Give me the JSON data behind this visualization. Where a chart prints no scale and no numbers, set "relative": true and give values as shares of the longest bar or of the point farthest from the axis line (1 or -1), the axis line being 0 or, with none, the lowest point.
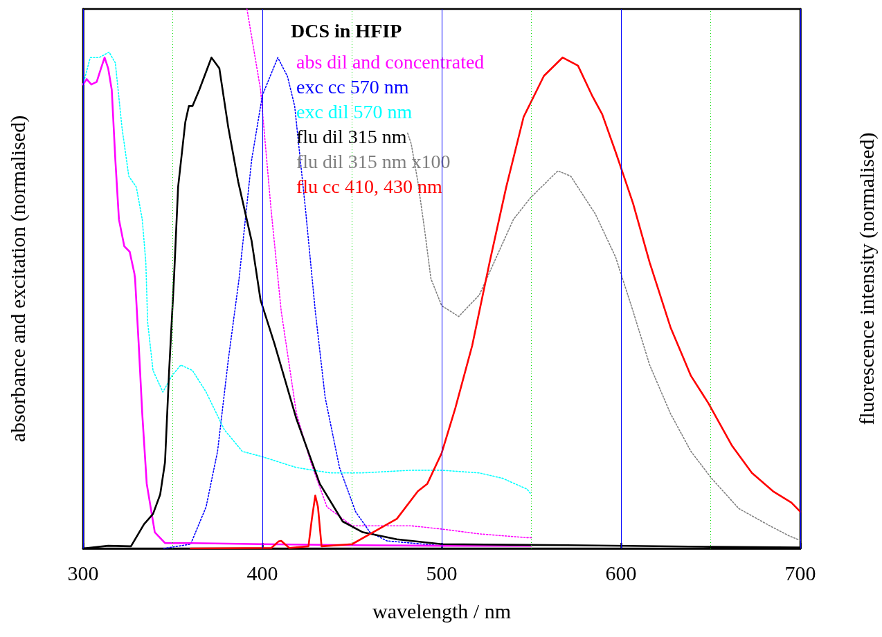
{
  "chart_data": {
    "type": "line",
    "relative": true,
    "xlabel": "wavelength / nm",
    "ylabel": "absorbance and excitation (normalised)",
    "y2label": "fluorescence intensity (normalised)",
    "legend_title": "DCS in HFIP",
    "legend": "top",
    "grid": "x",
    "marker": "none",
    "xlim": [
      300,
      700
    ],
    "xticks": [
      300,
      {
        "value": 350,
        "label": null
      },
      400,
      {
        "value": 450,
        "label": null
      },
      500,
      {
        "value": 550,
        "label": null
      },
      600,
      {
        "value": 650,
        "label": null
      },
      700
    ],
    "series": [
      {
        "name": "abs dil and concentrated",
        "color": "#ff00ff",
        "line_style": "solid",
        "x": [
          300,
          302,
          304.6,
          307.6,
          310,
          312,
          314,
          316,
          318,
          320,
          323,
          326,
          328.6,
          329,
          331,
          333,
          335.5,
          340,
          345.7,
          360,
          400,
          450,
          500,
          550
        ],
        "values": [
          0.86,
          0.87,
          0.86,
          0.865,
          0.89,
          0.91,
          0.89,
          0.85,
          0.72,
          0.61,
          0.56,
          0.55,
          0.51,
          0.5,
          0.38,
          0.25,
          0.12,
          0.03,
          0.01,
          0.01,
          0.008,
          0.006,
          0.005,
          0.005
        ]
      },
      {
        "color": "#ff00ff",
        "line_style": "dotted",
        "x": [
          391.4,
          399,
          404.8,
          410.5,
          419,
          427,
          436,
          450,
          483,
          500,
          521,
          547.6,
          550
        ],
        "values": [
          1.0,
          0.85,
          0.63,
          0.44,
          0.25,
          0.16,
          0.077,
          0.042,
          0.042,
          0.036,
          0.027,
          0.02,
          0.02
        ]
      },
      {
        "name": "exc cc 570 nm",
        "color": "#0000ff",
        "line_style": "dotted",
        "x": [
          345,
          360,
          368.6,
          375,
          381,
          387,
          394,
          400,
          408.6,
          414,
          418,
          424,
          429.5,
          435,
          443,
          452,
          460,
          469.5,
          500
        ],
        "values": [
          0,
          0.008,
          0.077,
          0.18,
          0.35,
          0.5,
          0.72,
          0.84,
          0.91,
          0.875,
          0.82,
          0.63,
          0.44,
          0.28,
          0.15,
          0.068,
          0.03,
          0.014,
          0.005
        ]
      },
      {
        "name": "exc dil 570 nm",
        "color": "#00ffff",
        "line_style": "dotted",
        "x": [
          300,
          304,
          309,
          314.5,
          318,
          321.7,
          325.5,
          329.7,
          333,
          335,
          336,
          339,
          344.5,
          349.5,
          354.5,
          361,
          368.6,
          378.8,
          388.8,
          400,
          419,
          438,
          455,
          483,
          500,
          521,
          534,
          547.6,
          550
        ],
        "values": [
          0.86,
          0.91,
          0.91,
          0.92,
          0.9,
          0.78,
          0.69,
          0.67,
          0.61,
          0.53,
          0.42,
          0.33,
          0.29,
          0.32,
          0.34,
          0.33,
          0.29,
          0.22,
          0.18,
          0.17,
          0.15,
          0.14,
          0.14,
          0.145,
          0.145,
          0.14,
          0.13,
          0.11,
          0.1
        ]
      },
      {
        "name": "flu dil 315 nm",
        "color": "#000000",
        "line_style": "solid",
        "x": [
          300,
          314,
          326.7,
          334,
          339,
          343,
          345.7,
          348,
          350.7,
          353,
          357,
          359,
          361,
          364.8,
          371.6,
          376,
          381,
          386.5,
          394,
          399,
          406.7,
          419,
          432,
          444.8,
          456,
          475,
          500,
          570,
          650,
          700
        ],
        "values": [
          0,
          0.005,
          0.004,
          0.045,
          0.064,
          0.1,
          0.16,
          0.33,
          0.5,
          0.67,
          0.79,
          0.82,
          0.82,
          0.85,
          0.91,
          0.89,
          0.78,
          0.68,
          0.57,
          0.46,
          0.38,
          0.24,
          0.12,
          0.05,
          0.03,
          0.017,
          0.008,
          0.006,
          0.003,
          0.002
        ]
      },
      {
        "name": "flu dil 315 nm x100",
        "color": "#808080",
        "line_style": "dotted",
        "x": [
          481,
          483,
          486.7,
          490.5,
          494,
          500,
          509.5,
          521,
          530.5,
          540,
          549.5,
          564.8,
          572,
          585.7,
          597,
          606.7,
          616,
          627.6,
          639,
          650.5,
          665.7,
          683,
          694,
          700
        ],
        "values": [
          0.77,
          0.75,
          0.68,
          0.59,
          0.5,
          0.45,
          0.43,
          0.47,
          0.54,
          0.61,
          0.65,
          0.7,
          0.69,
          0.62,
          0.54,
          0.44,
          0.34,
          0.25,
          0.18,
          0.13,
          0.074,
          0.042,
          0.023,
          0.015
        ]
      },
      {
        "name": "flu cc 410, 430 nm",
        "color": "#ff0000",
        "line_style": "solid",
        "x": [
          360,
          405,
          409,
          410.5,
          415,
          425.7,
          427.6,
          429.5,
          431,
          433,
          450,
          475,
          486.7,
          492,
          500,
          507.6,
          517,
          526.7,
          536,
          545.7,
          557,
          567.4,
          576,
          583.8,
          589.5,
          597,
          606.7,
          616,
          627.6,
          639,
          648.6,
          662,
          673,
          684.8,
          695,
          700
        ],
        "values": [
          0,
          0.001,
          0.013,
          0.014,
          0.001,
          0.004,
          0.055,
          0.098,
          0.077,
          0.004,
          0.008,
          0.055,
          0.106,
          0.12,
          0.177,
          0.26,
          0.376,
          0.53,
          0.67,
          0.8,
          0.876,
          0.91,
          0.895,
          0.84,
          0.805,
          0.735,
          0.64,
          0.53,
          0.41,
          0.32,
          0.27,
          0.19,
          0.14,
          0.106,
          0.085,
          0.068
        ]
      }
    ]
  }
}
